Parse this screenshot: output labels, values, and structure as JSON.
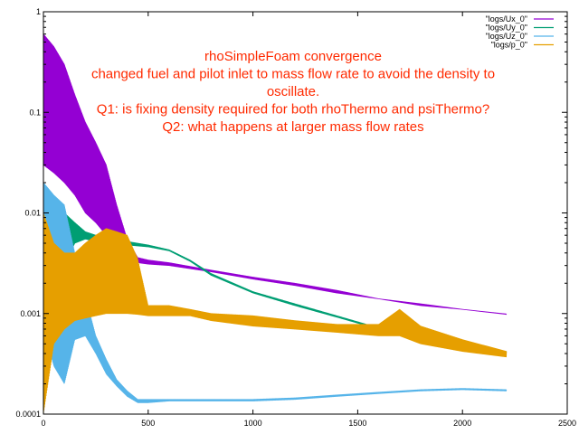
{
  "chart_data": {
    "type": "line",
    "title": "",
    "xlabel": "",
    "ylabel": "",
    "xlim": [
      0,
      2500
    ],
    "ylim": [
      0.0001,
      1
    ],
    "yscale": "log",
    "grid": false,
    "legend_position": "top-right",
    "x_ticks": [
      0,
      500,
      1000,
      1500,
      2000,
      2500
    ],
    "x_tick_labels": [
      "0",
      "500",
      "1000",
      "1500",
      "2000",
      "2500"
    ],
    "y_ticks": [
      0.0001,
      0.001,
      0.01,
      0.1,
      1
    ],
    "y_tick_labels": [
      "0.0001",
      "0.001",
      "0.01",
      "0.1",
      "1"
    ],
    "annotation": [
      "rhoSimpleFoam convergence",
      "changed fuel and pilot inlet to mass flow rate to avoid the density to",
      "oscillate.",
      "Q1: is fixing density required for both rhoThermo and psiThermo?",
      "Q2: what happens at larger mass flow rates"
    ],
    "series": [
      {
        "name": "\"logs/Ux_0\"",
        "color": "#9400d3",
        "x": [
          0,
          50,
          100,
          150,
          200,
          250,
          300,
          350,
          400,
          450,
          500,
          600,
          800,
          1000,
          1200,
          1400,
          1600,
          1800,
          2000,
          2210
        ],
        "lo": [
          0.03,
          0.025,
          0.02,
          0.015,
          0.01,
          0.008,
          0.006,
          0.0045,
          0.0035,
          0.0032,
          0.0031,
          0.003,
          0.0026,
          0.0022,
          0.0019,
          0.0016,
          0.0014,
          0.0012,
          0.0011,
          0.00098
        ],
        "hi": [
          0.6,
          0.45,
          0.3,
          0.15,
          0.08,
          0.05,
          0.03,
          0.012,
          0.0055,
          0.0036,
          0.0034,
          0.0032,
          0.0027,
          0.0023,
          0.002,
          0.0017,
          0.0014,
          0.00125,
          0.0011,
          0.00099
        ]
      },
      {
        "name": "\"logs/Uy_0\"",
        "color": "#009e73",
        "x": [
          0,
          50,
          100,
          150,
          200,
          250,
          300,
          400,
          500,
          600,
          700,
          800,
          1000,
          1200,
          1400,
          1600,
          1800,
          2000,
          2210
        ],
        "lo": [
          0.0012,
          0.0008,
          0.003,
          0.005,
          0.0055,
          0.0052,
          0.005,
          0.0048,
          0.0046,
          0.0042,
          0.0033,
          0.0024,
          0.0016,
          0.0012,
          0.00092,
          0.0007,
          0.00055,
          0.00046,
          0.00041
        ],
        "hi": [
          0.02,
          0.013,
          0.01,
          0.008,
          0.0065,
          0.006,
          0.0055,
          0.0052,
          0.0048,
          0.0043,
          0.0034,
          0.0025,
          0.00165,
          0.00125,
          0.00095,
          0.00072,
          0.00057,
          0.00047,
          0.00042
        ]
      },
      {
        "name": "\"logs/Uz_0\"",
        "color": "#56b4e9",
        "x": [
          0,
          50,
          100,
          150,
          200,
          250,
          300,
          350,
          400,
          450,
          500,
          600,
          800,
          1000,
          1200,
          1400,
          1600,
          1800,
          2000,
          2210
        ],
        "lo": [
          0.0007,
          0.0003,
          0.0002,
          0.00055,
          0.0006,
          0.0004,
          0.00025,
          0.00019,
          0.00015,
          0.00013,
          0.00013,
          0.000135,
          0.000135,
          0.000135,
          0.00014,
          0.00015,
          0.00016,
          0.00017,
          0.000175,
          0.00017
        ],
        "hi": [
          0.02,
          0.015,
          0.012,
          0.004,
          0.0015,
          0.0006,
          0.00035,
          0.00022,
          0.00017,
          0.00014,
          0.00014,
          0.00014,
          0.00014,
          0.00014,
          0.000145,
          0.000155,
          0.000165,
          0.000175,
          0.00018,
          0.000175
        ]
      },
      {
        "name": "\"logs/p_0\"",
        "color": "#e69f00",
        "x": [
          0,
          50,
          100,
          150,
          200,
          250,
          300,
          350,
          400,
          450,
          500,
          600,
          700,
          800,
          1000,
          1200,
          1400,
          1600,
          1700,
          1800,
          2000,
          2210
        ],
        "lo": [
          0.0001,
          0.0005,
          0.0007,
          0.00085,
          0.0009,
          0.00095,
          0.001,
          0.001,
          0.001,
          0.00098,
          0.00095,
          0.00095,
          0.00095,
          0.00085,
          0.00075,
          0.0007,
          0.00065,
          0.0006,
          0.0006,
          0.0005,
          0.00042,
          0.00037
        ],
        "hi": [
          0.01,
          0.005,
          0.004,
          0.004,
          0.005,
          0.006,
          0.007,
          0.0065,
          0.006,
          0.0035,
          0.0012,
          0.0012,
          0.0011,
          0.001,
          0.00095,
          0.00085,
          0.00078,
          0.00078,
          0.0011,
          0.00075,
          0.00055,
          0.00042
        ]
      }
    ]
  }
}
